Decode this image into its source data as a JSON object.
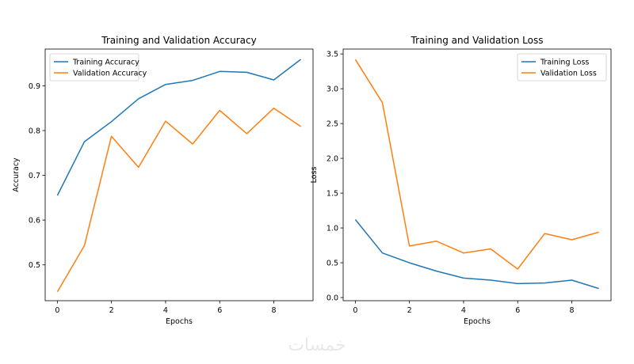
{
  "chart_data": [
    {
      "type": "line",
      "title": "Training and Validation Accuracy",
      "xlabel": "Epochs",
      "ylabel": "Accuracy",
      "x": [
        0,
        1,
        2,
        3,
        4,
        5,
        6,
        7,
        8,
        9
      ],
      "xlim": [
        -0.45,
        9.45
      ],
      "ylim": [
        0.42,
        0.982
      ],
      "xticks": [
        0,
        2,
        4,
        6,
        8
      ],
      "yticks": [
        0.5,
        0.6,
        0.7,
        0.8,
        0.9
      ],
      "legend_position": "top-left",
      "series": [
        {
          "name": "Training Accuracy",
          "color": "#1f77b4",
          "values": [
            0.655,
            0.775,
            0.82,
            0.871,
            0.903,
            0.912,
            0.932,
            0.93,
            0.913,
            0.959
          ]
        },
        {
          "name": "Validation Accuracy",
          "color": "#ff7f0e",
          "values": [
            0.44,
            0.543,
            0.787,
            0.718,
            0.821,
            0.77,
            0.845,
            0.793,
            0.85,
            0.809
          ]
        }
      ]
    },
    {
      "type": "line",
      "title": "Training and Validation Loss",
      "xlabel": "Epochs",
      "ylabel": "Loss",
      "x": [
        0,
        1,
        2,
        3,
        4,
        5,
        6,
        7,
        8,
        9
      ],
      "xlim": [
        -0.45,
        9.45
      ],
      "ylim": [
        -0.045,
        3.57
      ],
      "xticks": [
        0,
        2,
        4,
        6,
        8
      ],
      "yticks": [
        0.0,
        0.5,
        1.0,
        1.5,
        2.0,
        2.5,
        3.0,
        3.5
      ],
      "legend_position": "top-right",
      "series": [
        {
          "name": "Training Loss",
          "color": "#1f77b4",
          "values": [
            1.12,
            0.64,
            0.5,
            0.38,
            0.28,
            0.25,
            0.2,
            0.21,
            0.25,
            0.13
          ]
        },
        {
          "name": "Validation Loss",
          "color": "#ff7f0e",
          "values": [
            3.42,
            2.8,
            0.74,
            0.81,
            0.64,
            0.7,
            0.41,
            0.92,
            0.83,
            0.94
          ]
        }
      ]
    }
  ],
  "watermark": "خمسات"
}
